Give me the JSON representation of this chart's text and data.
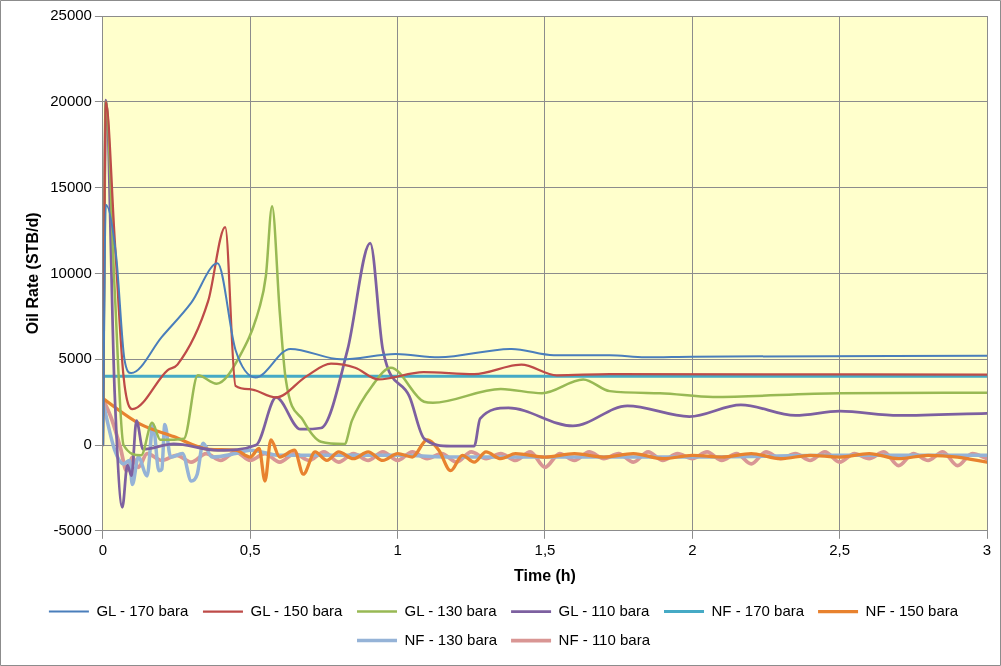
{
  "chart_data": {
    "type": "line",
    "xlabel": "Time (h)",
    "ylabel": "Oil Rate (STB/d)",
    "xlim": [
      0,
      3
    ],
    "xticks": [
      0,
      {
        "value": 0.5,
        "label": "0,5"
      },
      1,
      {
        "value": 1.5,
        "label": "1,5"
      },
      2,
      {
        "value": 2.5,
        "label": "2,5"
      },
      3
    ],
    "ylim": [
      -5000,
      25000
    ],
    "yticks": [
      -5000,
      0,
      5000,
      10000,
      15000,
      20000,
      25000
    ],
    "grid": true,
    "legend": "bottom",
    "marker": "none",
    "line_style": "solid",
    "series": [
      {
        "name": "GL - 170 bara",
        "color": "#4a7ebb",
        "x": [
          0,
          0.01,
          0.045,
          0.073,
          0.096,
          0.2,
          0.3,
          0.389,
          0.45,
          0.518,
          0.636,
          0.81,
          0.994,
          1.14,
          1.387,
          1.53,
          1.72,
          1.84,
          2.0,
          3.0
        ],
        "values": [
          0,
          14000,
          11000,
          5000,
          4190,
          6300,
          8300,
          10590,
          5540,
          3940,
          5600,
          4990,
          5300,
          5110,
          5600,
          5230,
          5230,
          5110,
          5150,
          5200
        ]
      },
      {
        "name": "GL - 150 bara",
        "color": "#be4b48",
        "x": [
          0,
          0.01,
          0.04,
          0.07,
          0.1,
          0.22,
          0.253,
          0.357,
          0.415,
          0.45,
          0.497,
          0.587,
          0.69,
          0.774,
          0.856,
          0.935,
          1.088,
          1.26,
          1.42,
          1.54,
          1.72,
          3.0
        ],
        "values": [
          0,
          20000,
          12000,
          4000,
          2090,
          4370,
          4680,
          8380,
          12690,
          3450,
          3260,
          2770,
          4000,
          4740,
          4500,
          3820,
          4250,
          4130,
          4680,
          4060,
          4130,
          4100
        ]
      },
      {
        "name": "GL - 130 bara",
        "color": "#98b954",
        "x": [
          0,
          0.01,
          0.04,
          0.07,
          0.13,
          0.167,
          0.195,
          0.275,
          0.322,
          0.386,
          0.462,
          0.531,
          0.553,
          0.574,
          0.6,
          0.62,
          0.68,
          0.74,
          0.82,
          0.845,
          0.914,
          0.977,
          1.09,
          1.12,
          1.35,
          1.49,
          1.63,
          1.72,
          1.89,
          2.07,
          2.5,
          3.0
        ],
        "values": [
          0,
          20000,
          9000,
          0,
          -600,
          1290,
          300,
          370,
          4060,
          3570,
          5110,
          8000,
          9850,
          13920,
          7760,
          3880,
          1420,
          190,
          60,
          1420,
          3450,
          4500,
          2520,
          2460,
          3260,
          3020,
          3820,
          3140,
          3020,
          2800,
          3020,
          3040
        ]
      },
      {
        "name": "GL - 110 bara",
        "color": "#7d60a0",
        "x": [
          0,
          0.01,
          0.04,
          0.066,
          0.083,
          0.097,
          0.114,
          0.136,
          0.24,
          0.39,
          0.52,
          0.588,
          0.67,
          0.74,
          0.83,
          0.907,
          0.95,
          1.04,
          1.09,
          1.18,
          1.26,
          1.28,
          1.376,
          1.595,
          1.78,
          1.99,
          2.165,
          2.35,
          2.5,
          2.7,
          3.0
        ],
        "values": [
          0,
          20100,
          3000,
          -3630,
          -1170,
          -1790,
          1420,
          -250,
          60,
          -310,
          0,
          2770,
          920,
          990,
          5540,
          11760,
          5540,
          2830,
          370,
          -60,
          -60,
          1540,
          2160,
          1110,
          2280,
          1660,
          2340,
          1720,
          1970,
          1720,
          1850
        ]
      },
      {
        "name": "NF - 170 bara",
        "color": "#46aac5",
        "x": [
          0,
          3
        ],
        "values": [
          4000,
          4000
        ]
      },
      {
        "name": "NF - 150 bara",
        "color": "#e8822f",
        "x": [
          0,
          0.125,
          0.24,
          0.36,
          0.45,
          0.5,
          0.53,
          0.55,
          0.57,
          0.6,
          0.65,
          0.68,
          0.72,
          0.76,
          0.8,
          0.85,
          0.9,
          0.95,
          1.0,
          1.05,
          1.1,
          1.14,
          1.18,
          1.22,
          1.26,
          1.3,
          1.35,
          1.4,
          1.5,
          1.6,
          1.7,
          1.8,
          1.9,
          2.0,
          2.1,
          2.2,
          2.3,
          2.4,
          2.5,
          2.6,
          2.7,
          2.8,
          2.9,
          3.0
        ],
        "values": [
          2700,
          1230,
          490,
          -250,
          -300,
          -700,
          -200,
          -2100,
          300,
          -700,
          -300,
          -1700,
          -400,
          -900,
          -400,
          -800,
          -400,
          -900,
          -500,
          -700,
          300,
          -300,
          -1500,
          -600,
          -1000,
          -400,
          -800,
          -500,
          -700,
          -500,
          -700,
          -500,
          -800,
          -600,
          -700,
          -500,
          -800,
          -600,
          -700,
          -500,
          -800,
          -600,
          -700,
          -1000
        ]
      },
      {
        "name": "NF - 130 bara",
        "color": "#95b3d7",
        "x": [
          0,
          0.04,
          0.07,
          0.09,
          0.1,
          0.12,
          0.15,
          0.17,
          0.19,
          0.2,
          0.21,
          0.23,
          0.27,
          0.3,
          0.32,
          0.34,
          0.37,
          0.45,
          0.5,
          0.6,
          0.8,
          1.0,
          1.2,
          1.5,
          2.0,
          2.5,
          3.0
        ],
        "values": [
          2500,
          -300,
          -1100,
          -900,
          -2300,
          -700,
          -1800,
          1200,
          -1500,
          -1400,
          1200,
          -700,
          -500,
          -2100,
          -1700,
          100,
          -700,
          -500,
          -300,
          -600,
          -600,
          -600,
          -700,
          -700,
          -700,
          -600,
          -600
        ]
      },
      {
        "name": "NF - 110 bara",
        "color": "#d99694",
        "x": [
          0,
          0.03,
          0.06,
          0.08,
          0.1,
          0.12,
          0.15,
          0.2,
          0.25,
          0.3,
          0.35,
          0.4,
          0.45,
          0.5,
          0.55,
          0.6,
          0.65,
          0.7,
          0.75,
          0.8,
          0.85,
          0.9,
          0.95,
          1.0,
          1.05,
          1.1,
          1.15,
          1.2,
          1.25,
          1.3,
          1.35,
          1.4,
          1.45,
          1.5,
          1.55,
          1.6,
          1.65,
          1.7,
          1.75,
          1.8,
          1.85,
          1.9,
          1.95,
          2.0,
          2.05,
          2.1,
          2.15,
          2.2,
          2.25,
          2.3,
          2.35,
          2.4,
          2.45,
          2.5,
          2.55,
          2.6,
          2.65,
          2.7,
          2.75,
          2.8,
          2.85,
          2.9,
          2.95,
          3.0
        ],
        "values": [
          2700,
          1500,
          -200,
          -1500,
          -700,
          -1300,
          -500,
          -900,
          -600,
          -1000,
          -500,
          -900,
          -400,
          -900,
          -500,
          -1000,
          -500,
          -900,
          -400,
          -1000,
          -500,
          -900,
          -400,
          -900,
          -400,
          -800,
          -500,
          -1000,
          -400,
          -800,
          -500,
          -900,
          -400,
          -1300,
          -500,
          -900,
          -400,
          -800,
          -500,
          -1000,
          -400,
          -900,
          -500,
          -800,
          -400,
          -900,
          -500,
          -1100,
          -400,
          -800,
          -500,
          -900,
          -400,
          -1000,
          -500,
          -800,
          -400,
          -1200,
          -500,
          -900,
          -400,
          -1200,
          -500,
          -800
        ]
      }
    ]
  }
}
